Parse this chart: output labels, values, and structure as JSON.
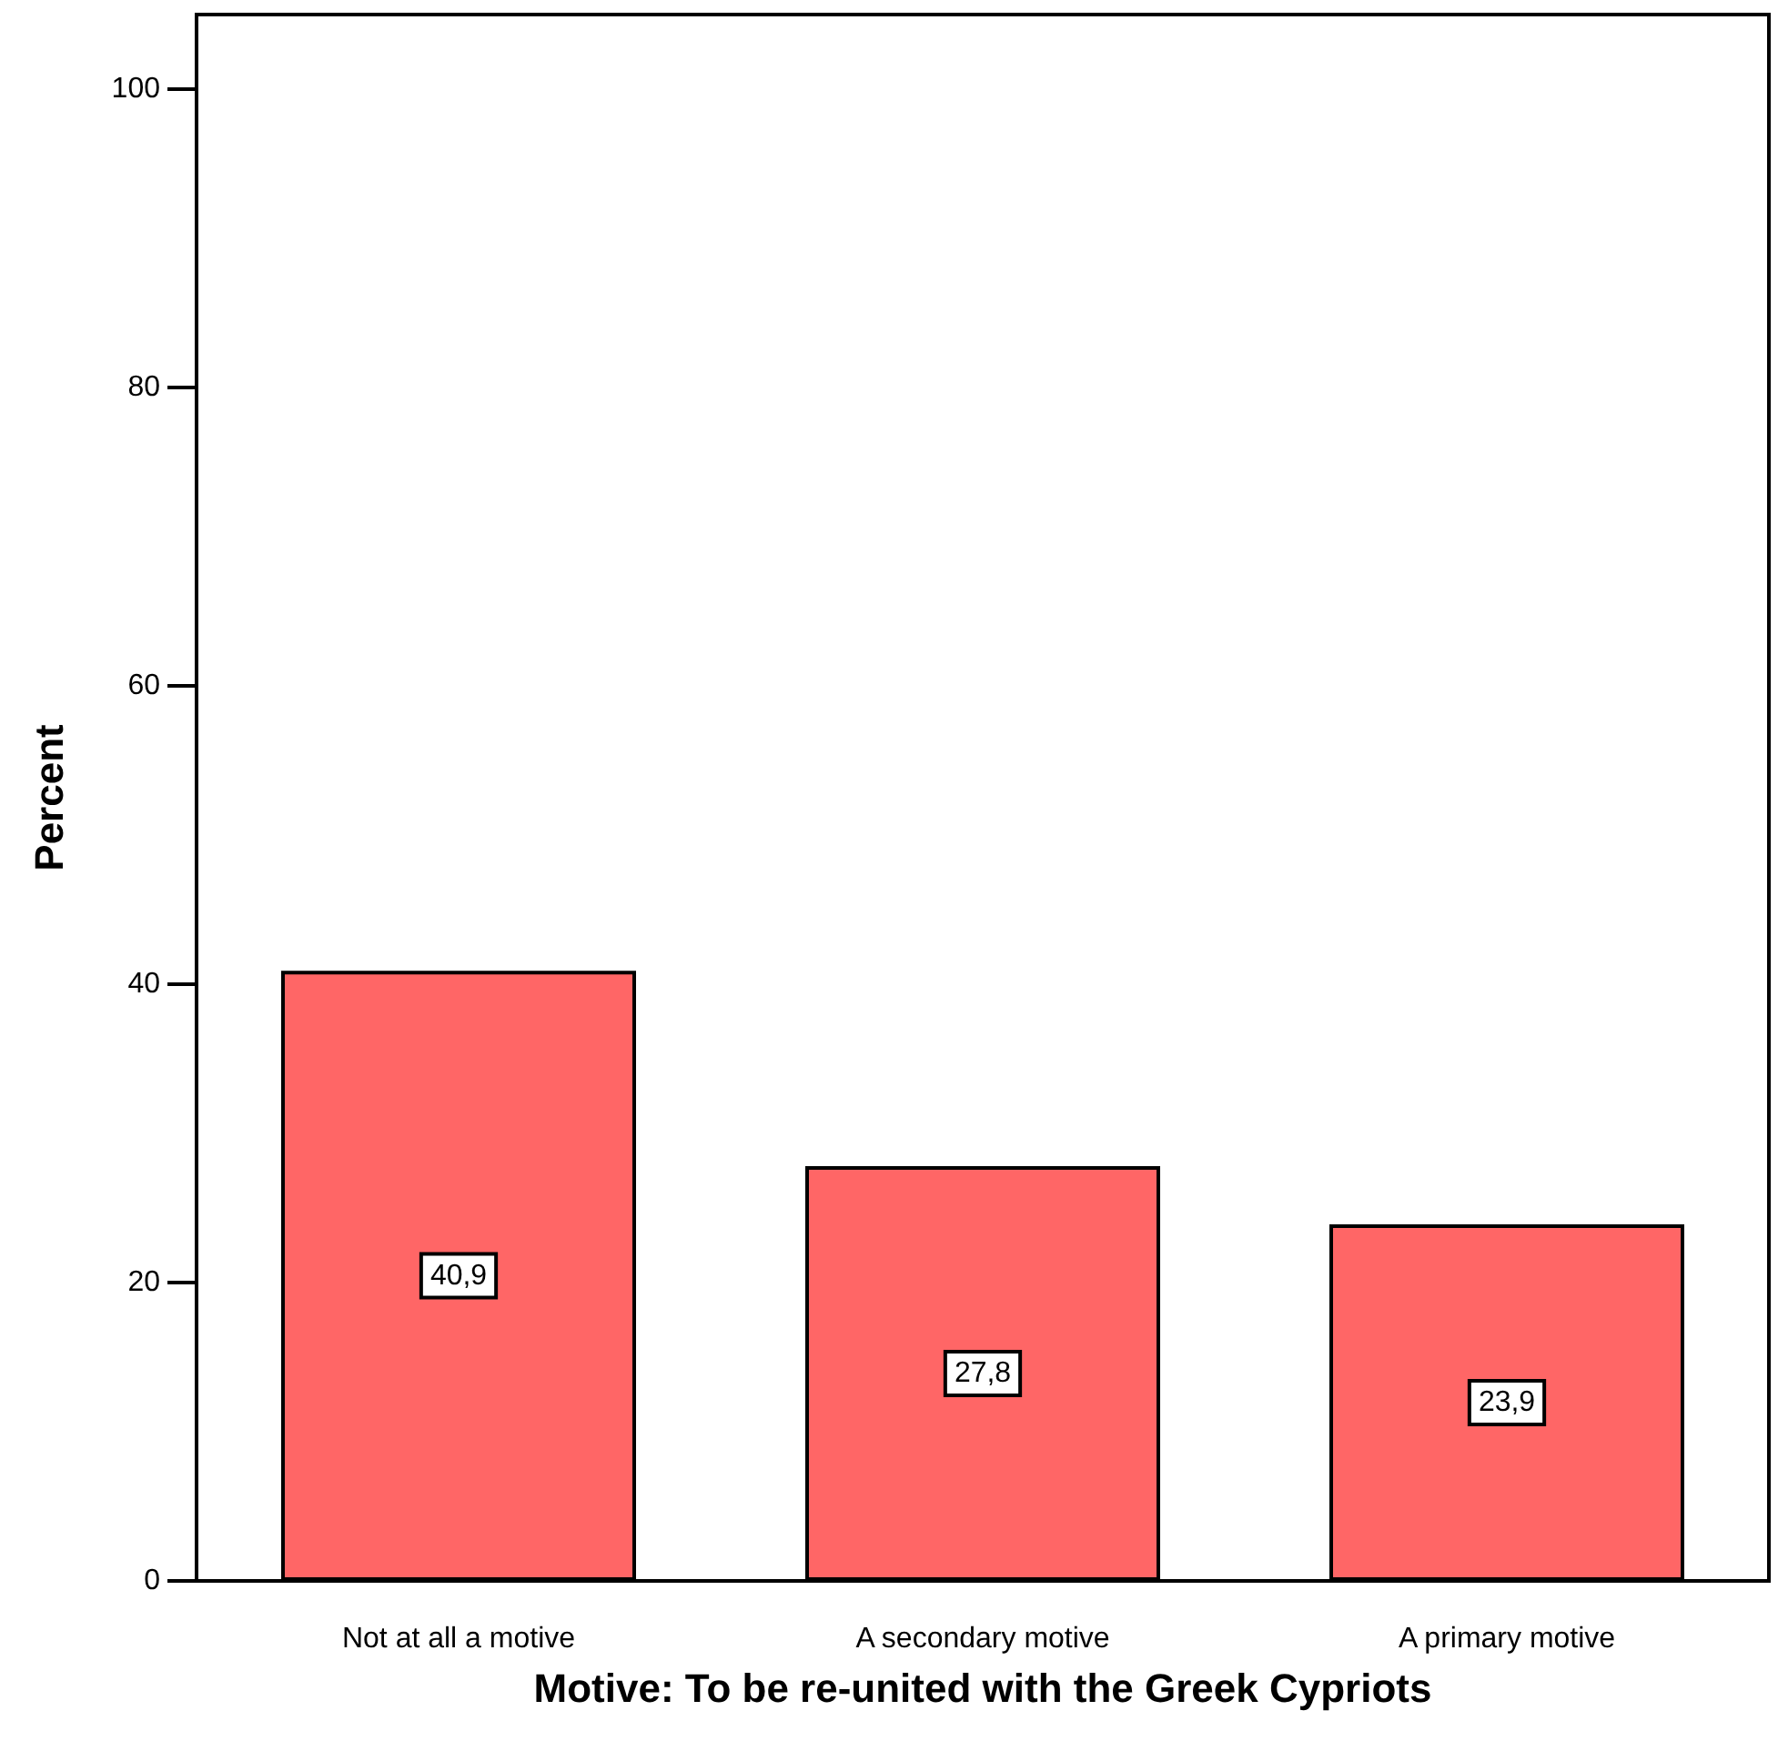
{
  "chart_data": {
    "type": "bar",
    "xlabel": "Motive: To be re-united with the Greek Cypriots",
    "ylabel": "Percent",
    "categories": [
      "Not at all a motive",
      "A secondary motive",
      "A primary motive"
    ],
    "values": [
      40.9,
      27.8,
      23.9
    ],
    "value_labels": [
      "40,9",
      "27,8",
      "23,9"
    ],
    "color": "#ff6666",
    "ylim": [
      0,
      105
    ],
    "yticks": [
      0,
      20,
      40,
      60,
      80,
      100
    ],
    "grid": false
  }
}
